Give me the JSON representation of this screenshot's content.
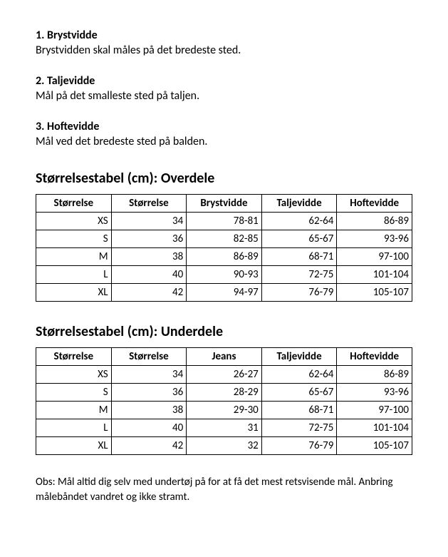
{
  "sections": [
    {
      "title": "1. Brystvidde",
      "text": "Brystvidden skal måles på det bredeste sted."
    },
    {
      "title": "2. Taljevidde",
      "text": "Mål på det smalleste sted på taljen."
    },
    {
      "title": "3. Hoftevidde",
      "text": "Mål ved det bredeste sted på balden."
    }
  ],
  "table1": {
    "title": "Størrelsestabel (cm): Overdele",
    "columns": [
      "Størrelse",
      "Størrelse",
      "Brystvidde",
      "Taljevidde",
      "Hoftevidde"
    ],
    "rows": [
      [
        "XS",
        "34",
        "78-81",
        "62-64",
        "86-89"
      ],
      [
        "S",
        "36",
        "82-85",
        "65-67",
        "93-96"
      ],
      [
        "M",
        "38",
        "86-89",
        "68-71",
        "97-100"
      ],
      [
        "L",
        "40",
        "90-93",
        "72-75",
        "101-104"
      ],
      [
        "XL",
        "42",
        "94-97",
        "76-79",
        "105-107"
      ]
    ]
  },
  "table2": {
    "title": "Størrelsestabel (cm): Underdele",
    "columns": [
      "Størrelse",
      "Størrelse",
      "Jeans",
      "Taljevidde",
      "Hoftevidde"
    ],
    "rows": [
      [
        "XS",
        "34",
        "26-27",
        "62-64",
        "86-89"
      ],
      [
        "S",
        "36",
        "28-29",
        "65-67",
        "93-96"
      ],
      [
        "M",
        "38",
        "29-30",
        "68-71",
        "97-100"
      ],
      [
        "L",
        "40",
        "31",
        "72-75",
        "101-104"
      ],
      [
        "XL",
        "42",
        "32",
        "76-79",
        "105-107"
      ]
    ]
  },
  "note": "Obs: Mål altid dig selv med undertøj på for at få det mest retsvisende mål. Anbring målebåndet vandret og ikke stramt."
}
